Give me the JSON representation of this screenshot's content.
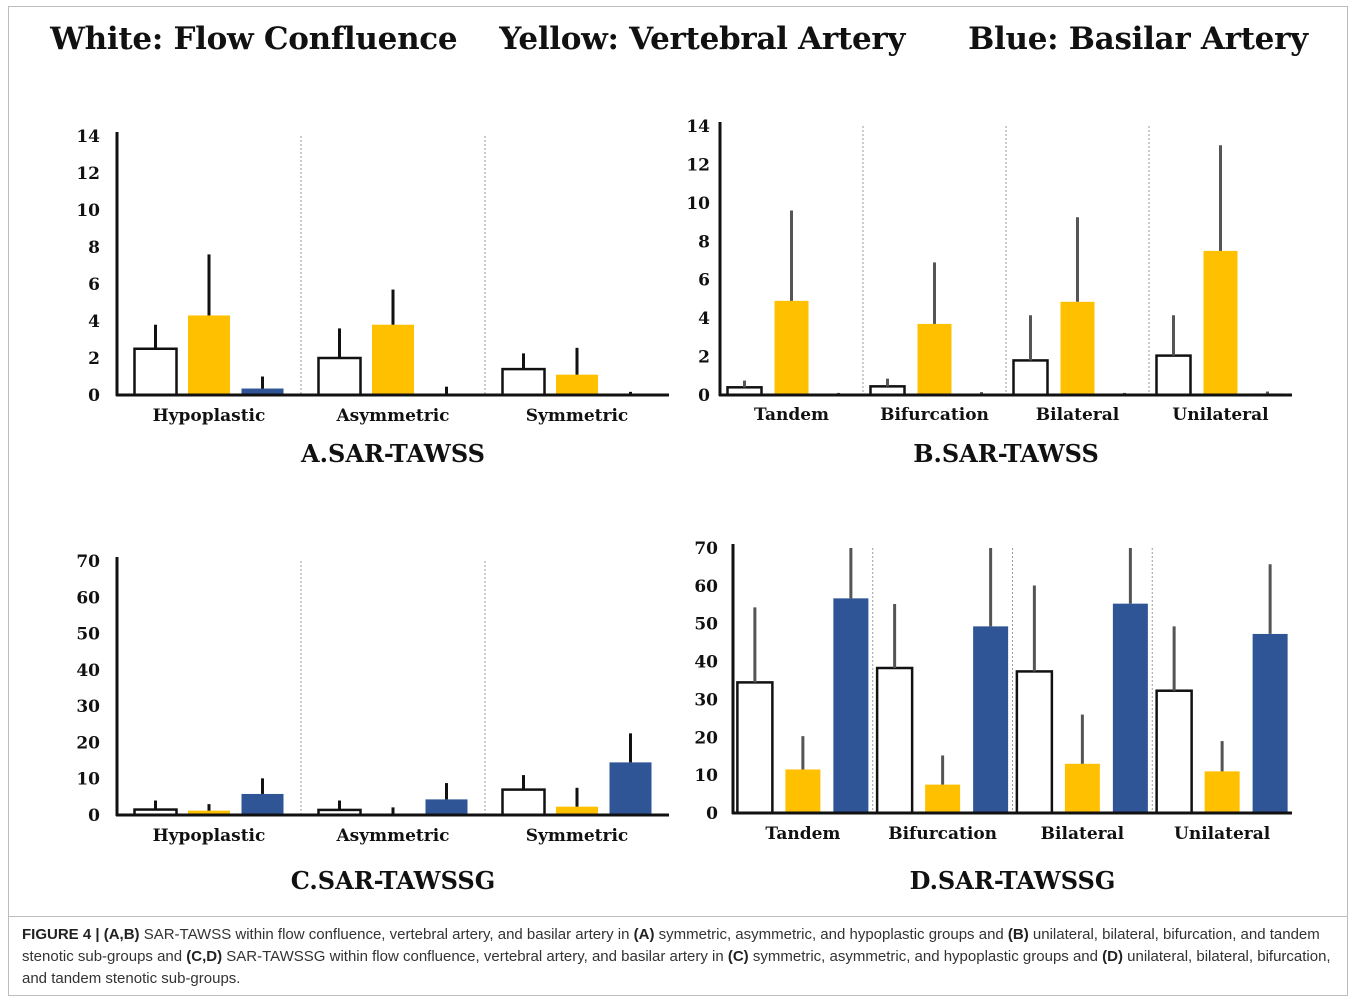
{
  "header": {
    "title": "White: Flow Confluence    Yellow: Vertebral Artery      Blue: Basilar Artery"
  },
  "colors": {
    "flow_confluence": "#ffffff",
    "vertebral_artery": "#ffc000",
    "basilar_artery": "#2f5597",
    "error_bar_a_c": "#111111",
    "error_bar_b_d": "#555555"
  },
  "chart_data": [
    {
      "type": "bar",
      "title": "A.SAR-TAWSS",
      "categories": [
        "Hypoplastic",
        "Asymmetric",
        "Symmetric"
      ],
      "ylim": [
        0,
        14
      ],
      "yticks": [
        0,
        2,
        4,
        6,
        8,
        10,
        12,
        14
      ],
      "grid": false,
      "category_separators": true,
      "series": [
        {
          "values": [
            2.5,
            2.0,
            1.4
          ],
          "errors": [
            1.3,
            1.6,
            0.85
          ]
        },
        {
          "values": [
            4.3,
            3.8,
            1.1
          ],
          "errors": [
            3.3,
            1.9,
            1.45
          ]
        },
        {
          "values": [
            0.35,
            0.03,
            0.02
          ],
          "errors": [
            0.65,
            0.42,
            0.15
          ]
        }
      ]
    },
    {
      "type": "bar",
      "title": "B.SAR-TAWSS",
      "categories": [
        "Tandem",
        "Bifurcation",
        "Bilateral",
        "Unilateral"
      ],
      "ylim": [
        0,
        14
      ],
      "yticks": [
        0,
        2,
        4,
        6,
        8,
        10,
        12,
        14
      ],
      "grid": false,
      "category_separators": true,
      "series": [
        {
          "values": [
            0.4,
            0.45,
            1.8,
            2.05
          ],
          "errors": [
            0.35,
            0.4,
            2.35,
            2.1
          ]
        },
        {
          "values": [
            4.9,
            3.7,
            4.85,
            7.5
          ],
          "errors": [
            4.7,
            3.2,
            4.4,
            5.5
          ]
        },
        {
          "values": [
            0.03,
            0.05,
            0.03,
            0.08
          ],
          "errors": [
            0.08,
            0.1,
            0.08,
            0.1
          ]
        }
      ]
    },
    {
      "type": "bar",
      "title": "C.SAR-TAWSSG",
      "categories": [
        "Hypoplastic",
        "Asymmetric",
        "Symmetric"
      ],
      "ylim": [
        0,
        70
      ],
      "yticks": [
        0,
        10,
        20,
        30,
        40,
        50,
        60,
        70
      ],
      "grid": false,
      "category_separators": true,
      "series": [
        {
          "values": [
            1.5,
            1.4,
            7.0
          ],
          "errors": [
            2.5,
            2.6,
            4.0
          ]
        },
        {
          "values": [
            1.2,
            0.1,
            2.3
          ],
          "errors": [
            1.8,
            2.0,
            5.2
          ]
        },
        {
          "values": [
            5.8,
            4.3,
            14.5
          ],
          "errors": [
            4.3,
            4.5,
            8.0
          ]
        }
      ]
    },
    {
      "type": "bar",
      "title": "D.SAR-TAWSSG",
      "categories": [
        "Tandem",
        "Bifurcation",
        "Bilateral",
        "Unilateral"
      ],
      "ylim": [
        0,
        70
      ],
      "yticks": [
        0,
        10,
        20,
        30,
        40,
        50,
        60,
        70
      ],
      "grid": false,
      "category_separators": true,
      "series": [
        {
          "values": [
            34.5,
            38.3,
            37.4,
            32.3
          ],
          "errors": [
            19.8,
            16.9,
            22.7,
            17.0
          ]
        },
        {
          "values": [
            11.5,
            7.5,
            13.0,
            11.0
          ],
          "errors": [
            8.8,
            7.7,
            13.0,
            8.0
          ]
        },
        {
          "values": [
            56.7,
            49.3,
            55.3,
            47.3
          ],
          "errors": [
            13.3,
            20.7,
            14.7,
            18.4
          ]
        }
      ]
    }
  ],
  "caption": {
    "label": "FIGURE 4 | ",
    "segments": [
      {
        "b": "(A,B)"
      },
      {
        "t": " SAR-TAWSS within flow confluence, vertebral artery, and basilar artery in "
      },
      {
        "b": "(A)"
      },
      {
        "t": " symmetric, asymmetric, and hypoplastic groups and "
      },
      {
        "b": "(B)"
      },
      {
        "t": " unilateral, bilateral, bifurcation, and tandem stenotic sub-groups and "
      },
      {
        "b": "(C,D)"
      },
      {
        "t": " SAR-TAWSSG within flow confluence, vertebral artery, and basilar artery in "
      },
      {
        "b": "(C)"
      },
      {
        "t": " symmetric, asymmetric, and hypoplastic groups and "
      },
      {
        "b": "(D)"
      },
      {
        "t": " unilateral, bilateral, bifurcation, and tandem stenotic sub-groups."
      }
    ]
  }
}
